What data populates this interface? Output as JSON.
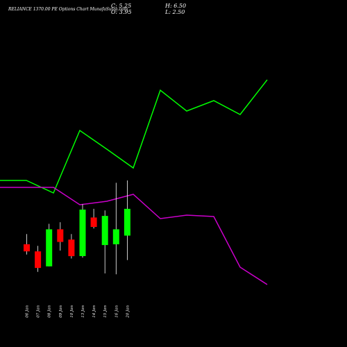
{
  "header": {
    "title": "RELIANCE 1370.00 PE Options Chart MunafaSutra.com",
    "close": "C: 5.25",
    "open": "O: 3.95",
    "high": "H: 6.50",
    "low": "L: 2.50"
  },
  "colors": {
    "background": "#000000",
    "bull": "#00ff00",
    "bear": "#ff0000",
    "line_green": "#00ff00",
    "line_magenta": "#cc00cc",
    "wick": "#ffffff"
  },
  "chart_data": [
    {
      "type": "line",
      "series": [
        {
          "values": [
            240,
            240,
            222,
            312,
            285,
            258,
            370,
            340,
            355,
            335,
            385
          ],
          "color": "#00ff00"
        },
        {
          "values": [
            230,
            230,
            230,
            205,
            210,
            220,
            185,
            190,
            188,
            115,
            90
          ],
          "color": "#cc00cc"
        }
      ],
      "ylim": [
        0,
        500
      ]
    },
    {
      "type": "candlestick",
      "categories": [
        "06 Jan",
        "07 Jan",
        "08 Jan",
        "09 Jan",
        "10 Jan",
        "13 Jan",
        "14 Jan",
        "15 Jan",
        "16 Jan",
        "20 Jan"
      ],
      "ohlc": [
        {
          "open": 4.7,
          "high": 5.35,
          "low": 4.05,
          "close": 4.25
        },
        {
          "open": 4.25,
          "high": 4.6,
          "low": 2.95,
          "close": 3.2
        },
        {
          "open": 3.3,
          "high": 6.0,
          "low": 3.3,
          "close": 5.65
        },
        {
          "open": 5.65,
          "high": 6.1,
          "low": 4.3,
          "close": 4.85
        },
        {
          "open": 5.0,
          "high": 5.35,
          "low": 3.8,
          "close": 3.95
        },
        {
          "open": 3.95,
          "high": 7.25,
          "low": 3.85,
          "close": 6.9
        },
        {
          "open": 6.4,
          "high": 6.95,
          "low": 5.7,
          "close": 5.8
        },
        {
          "open": 4.65,
          "high": 6.85,
          "low": 2.85,
          "close": 6.5
        },
        {
          "open": 4.7,
          "high": 8.6,
          "low": 2.8,
          "close": 5.65
        },
        {
          "open": 5.25,
          "high": 8.75,
          "low": 3.7,
          "close": 6.95
        }
      ]
    }
  ]
}
